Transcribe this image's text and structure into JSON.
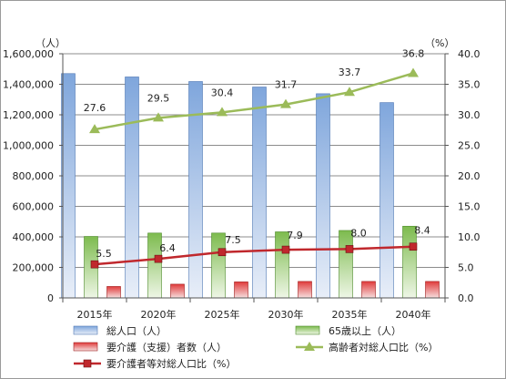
{
  "chart_data": {
    "type": "bar",
    "categories": [
      "2015年",
      "2020年",
      "2025年",
      "2030年",
      "2035年",
      "2040年"
    ],
    "y_left": {
      "unit_label": "（人）",
      "ylim": [
        0,
        1600000
      ],
      "ticks": [
        "0",
        "200,000",
        "400,000",
        "600,000",
        "800,000",
        "1,000,000",
        "1,200,000",
        "1,400,000",
        "1,600,000"
      ]
    },
    "y_right": {
      "unit_label": "（%）",
      "ylim": [
        0,
        40
      ],
      "ticks": [
        "0.0",
        "5.0",
        "10.0",
        "15.0",
        "20.0",
        "25.0",
        "30.0",
        "35.0",
        "40.0"
      ]
    },
    "bar_series": [
      {
        "name": "総人口（人）",
        "values": [
          1470000,
          1448000,
          1418000,
          1382000,
          1338000,
          1280000
        ],
        "color_top": "#7fa6dc",
        "color_bottom": "#e8eef8",
        "border": "#4f78b4"
      },
      {
        "name": "65歳以上（人）",
        "values": [
          403000,
          425000,
          425000,
          433000,
          442000,
          470000
        ],
        "color_top": "#7dbb4e",
        "color_bottom": "#eef6e6",
        "border": "#4d8a2a"
      },
      {
        "name": "要介護（支援）者数（人）",
        "values": [
          75000,
          90000,
          105000,
          108000,
          108000,
          108000
        ],
        "color_top": "#e03b3b",
        "color_bottom": "#f6dede",
        "border": "#a01f1f"
      }
    ],
    "line_series": [
      {
        "name": "高齢者対総人口比（%）",
        "values": [
          27.6,
          29.5,
          30.4,
          31.7,
          33.7,
          36.8
        ],
        "labels": [
          "27.6",
          "29.5",
          "30.4",
          "31.7",
          "33.7",
          "36.8"
        ],
        "color": "#9bbb59",
        "marker": "triangle"
      },
      {
        "name": "要介護者等対総人口比（%）",
        "values": [
          5.5,
          6.4,
          7.5,
          7.9,
          8.0,
          8.4
        ],
        "labels": [
          "5.5",
          "6.4",
          "7.5",
          "7.9",
          "8.0",
          "8.4"
        ],
        "color": "#c0282d",
        "marker": "square"
      }
    ],
    "grid": true,
    "legend_placement": "bottom"
  }
}
